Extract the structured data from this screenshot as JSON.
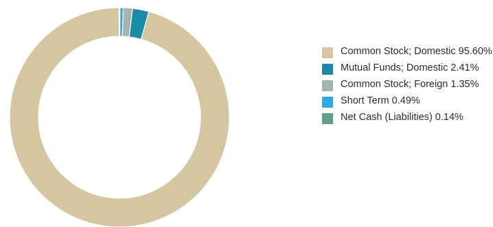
{
  "chart_data": {
    "type": "pie",
    "donut": true,
    "slices": [
      {
        "label": "Common Stock; Domestic 95.60%",
        "value": 95.6,
        "color": "#d4c7a0"
      },
      {
        "label": "Mutual Funds; Domestic 2.41%",
        "value": 2.41,
        "color": "#1d8aa6"
      },
      {
        "label": "Common Stock; Foreign 1.35%",
        "value": 1.35,
        "color": "#a3b5b0"
      },
      {
        "label": "Short Term 0.49%",
        "value": 0.49,
        "color": "#33a9dc"
      },
      {
        "label": "Net Cash (Liabilities) 0.14%",
        "value": 0.14,
        "color": "#62a186"
      }
    ],
    "legend_position": "right"
  }
}
